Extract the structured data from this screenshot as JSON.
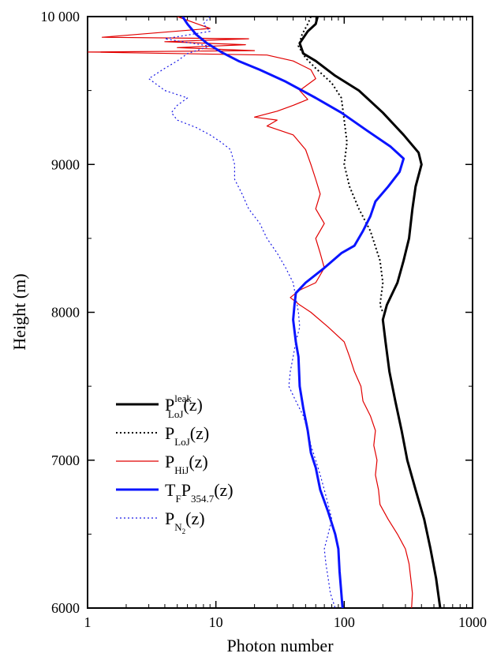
{
  "chart_data": {
    "type": "line",
    "xlabel": "Photon number",
    "ylabel": "Height (m)",
    "xscale": "log",
    "xlim": [
      1,
      1000
    ],
    "ylim": [
      6000,
      10000
    ],
    "x_ticks": [
      {
        "value": 1,
        "label": "1"
      },
      {
        "value": 10,
        "label": "10"
      },
      {
        "value": 100,
        "label": "100"
      },
      {
        "value": 1000,
        "label": "1000"
      }
    ],
    "y_ticks": [
      {
        "value": 6000,
        "label": "6000"
      },
      {
        "value": 7000,
        "label": "7000"
      },
      {
        "value": 8000,
        "label": "8000"
      },
      {
        "value": 9000,
        "label": "9000"
      },
      {
        "value": 10000,
        "label": "10 000"
      }
    ],
    "grid": false,
    "legend_position": "bottom-left",
    "series": [
      {
        "legend_base": "P",
        "legend_sup": "leak",
        "legend_sub": "LoJ",
        "legend_tail": "(z)",
        "color": "#000000",
        "style": "solid",
        "width": 3,
        "points": [
          [
            62,
            10000
          ],
          [
            60,
            9950
          ],
          [
            52,
            9900
          ],
          [
            45,
            9820
          ],
          [
            48,
            9750
          ],
          [
            60,
            9700
          ],
          [
            85,
            9600
          ],
          [
            130,
            9500
          ],
          [
            200,
            9350
          ],
          [
            290,
            9200
          ],
          [
            380,
            9080
          ],
          [
            400,
            9000
          ],
          [
            360,
            8850
          ],
          [
            340,
            8700
          ],
          [
            320,
            8500
          ],
          [
            290,
            8350
          ],
          [
            260,
            8200
          ],
          [
            215,
            8050
          ],
          [
            200,
            7950
          ],
          [
            210,
            7800
          ],
          [
            225,
            7600
          ],
          [
            250,
            7400
          ],
          [
            280,
            7200
          ],
          [
            310,
            7000
          ],
          [
            360,
            6800
          ],
          [
            420,
            6600
          ],
          [
            470,
            6400
          ],
          [
            520,
            6200
          ],
          [
            560,
            6000
          ]
        ]
      },
      {
        "legend_base": "P",
        "legend_sup": "",
        "legend_sub": "LoJ",
        "legend_tail": "(z)",
        "color": "#000000",
        "style": "dotted",
        "width": 2,
        "points": [
          [
            55,
            10000
          ],
          [
            52,
            9950
          ],
          [
            47,
            9880
          ],
          [
            44,
            9800
          ],
          [
            50,
            9720
          ],
          [
            60,
            9650
          ],
          [
            80,
            9550
          ],
          [
            95,
            9450
          ],
          [
            100,
            9300
          ],
          [
            105,
            9150
          ],
          [
            100,
            9000
          ],
          [
            110,
            8850
          ],
          [
            130,
            8700
          ],
          [
            160,
            8550
          ],
          [
            190,
            8350
          ],
          [
            200,
            8200
          ],
          [
            190,
            8050
          ],
          [
            200,
            8000
          ]
        ]
      },
      {
        "legend_base": "P",
        "legend_sup": "",
        "legend_sub": "HiJ",
        "legend_tail": "(z)",
        "color": "#e10000",
        "style": "solid",
        "width": 1.2,
        "points": [
          [
            5,
            10000
          ],
          [
            9,
            9920
          ],
          [
            1.3,
            9860
          ],
          [
            18,
            9850
          ],
          [
            4,
            9830
          ],
          [
            17,
            9810
          ],
          [
            5,
            9790
          ],
          [
            20,
            9770
          ],
          [
            1,
            9760
          ],
          [
            25,
            9740
          ],
          [
            40,
            9700
          ],
          [
            55,
            9640
          ],
          [
            60,
            9580
          ],
          [
            45,
            9500
          ],
          [
            52,
            9440
          ],
          [
            40,
            9400
          ],
          [
            30,
            9360
          ],
          [
            20,
            9320
          ],
          [
            30,
            9300
          ],
          [
            25,
            9260
          ],
          [
            40,
            9200
          ],
          [
            50,
            9100
          ],
          [
            55,
            9000
          ],
          [
            60,
            8900
          ],
          [
            65,
            8800
          ],
          [
            60,
            8700
          ],
          [
            70,
            8600
          ],
          [
            60,
            8500
          ],
          [
            65,
            8400
          ],
          [
            70,
            8300
          ],
          [
            60,
            8200
          ],
          [
            45,
            8150
          ],
          [
            38,
            8100
          ],
          [
            45,
            8050
          ],
          [
            55,
            8000
          ],
          [
            75,
            7900
          ],
          [
            100,
            7800
          ],
          [
            110,
            7700
          ],
          [
            120,
            7600
          ],
          [
            135,
            7500
          ],
          [
            140,
            7400
          ],
          [
            160,
            7300
          ],
          [
            175,
            7200
          ],
          [
            170,
            7100
          ],
          [
            180,
            7000
          ],
          [
            175,
            6900
          ],
          [
            185,
            6800
          ],
          [
            190,
            6700
          ],
          [
            220,
            6600
          ],
          [
            260,
            6500
          ],
          [
            300,
            6400
          ],
          [
            320,
            6300
          ],
          [
            330,
            6200
          ],
          [
            340,
            6100
          ],
          [
            335,
            6000
          ]
        ]
      },
      {
        "legend_base": "T",
        "legend_sup": "",
        "legend_sub": "F",
        "legend_tail": "P354.7(z)",
        "legend_tail_sub": "354.7",
        "color": "#0a14ff",
        "style": "solid",
        "width": 3,
        "points": [
          [
            5.5,
            10000
          ],
          [
            6,
            9950
          ],
          [
            7,
            9880
          ],
          [
            8.5,
            9820
          ],
          [
            11,
            9760
          ],
          [
            15,
            9700
          ],
          [
            22,
            9640
          ],
          [
            35,
            9560
          ],
          [
            60,
            9450
          ],
          [
            95,
            9350
          ],
          [
            150,
            9230
          ],
          [
            230,
            9120
          ],
          [
            290,
            9040
          ],
          [
            270,
            8950
          ],
          [
            220,
            8850
          ],
          [
            175,
            8750
          ],
          [
            160,
            8650
          ],
          [
            140,
            8550
          ],
          [
            120,
            8450
          ],
          [
            95,
            8400
          ],
          [
            70,
            8300
          ],
          [
            50,
            8200
          ],
          [
            42,
            8130
          ],
          [
            41,
            8050
          ],
          [
            40,
            7950
          ],
          [
            42,
            7800
          ],
          [
            44,
            7700
          ],
          [
            45,
            7500
          ],
          [
            48,
            7350
          ],
          [
            52,
            7200
          ],
          [
            55,
            7050
          ],
          [
            60,
            6950
          ],
          [
            65,
            6800
          ],
          [
            75,
            6650
          ],
          [
            85,
            6500
          ],
          [
            90,
            6400
          ],
          [
            92,
            6250
          ],
          [
            95,
            6100
          ],
          [
            97,
            6000
          ]
        ]
      },
      {
        "legend_base": "P",
        "legend_sup": "",
        "legend_sub": "N2",
        "legend_tail": "(z)",
        "color": "#1a1ae6",
        "style": "dotted",
        "width": 1.2,
        "points": [
          [
            9,
            10000
          ],
          [
            8,
            9950
          ],
          [
            9,
            9900
          ],
          [
            4,
            9850
          ],
          [
            9,
            9800
          ],
          [
            6,
            9750
          ],
          [
            5,
            9700
          ],
          [
            4,
            9650
          ],
          [
            3,
            9580
          ],
          [
            4,
            9500
          ],
          [
            6,
            9450
          ],
          [
            5,
            9400
          ],
          [
            4.5,
            9350
          ],
          [
            5,
            9300
          ],
          [
            7,
            9250
          ],
          [
            9,
            9200
          ],
          [
            11,
            9150
          ],
          [
            13,
            9100
          ],
          [
            14,
            9000
          ],
          [
            14,
            8900
          ],
          [
            16,
            8800
          ],
          [
            18,
            8700
          ],
          [
            22,
            8600
          ],
          [
            25,
            8500
          ],
          [
            30,
            8400
          ],
          [
            35,
            8300
          ],
          [
            40,
            8200
          ],
          [
            42,
            8100
          ],
          [
            44,
            8000
          ],
          [
            45,
            7900
          ],
          [
            42,
            7800
          ],
          [
            40,
            7700
          ],
          [
            38,
            7600
          ],
          [
            37,
            7500
          ],
          [
            42,
            7400
          ],
          [
            48,
            7300
          ],
          [
            52,
            7200
          ],
          [
            55,
            7100
          ],
          [
            60,
            7000
          ],
          [
            65,
            6900
          ],
          [
            70,
            6800
          ],
          [
            75,
            6700
          ],
          [
            80,
            6600
          ],
          [
            75,
            6500
          ],
          [
            70,
            6400
          ],
          [
            72,
            6300
          ],
          [
            75,
            6200
          ],
          [
            78,
            6100
          ],
          [
            85,
            6000
          ]
        ]
      }
    ]
  }
}
